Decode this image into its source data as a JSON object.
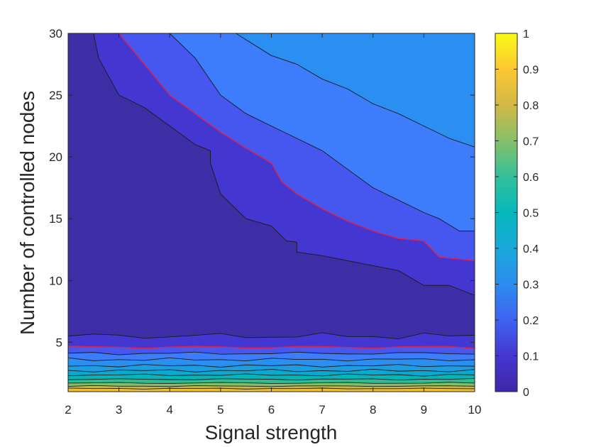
{
  "chart_data": {
    "type": "heatmap",
    "subtype": "filled-contour",
    "title": "",
    "xlabel": "Signal strength",
    "ylabel": "Number of controlled nodes",
    "xlim": [
      2,
      10
    ],
    "ylim": [
      1,
      30
    ],
    "xticks": [
      2,
      3,
      4,
      5,
      6,
      7,
      8,
      9,
      10
    ],
    "yticks": [
      5,
      10,
      15,
      20,
      25,
      30
    ],
    "colorbar": {
      "colormap": "parula",
      "range": [
        0,
        1
      ],
      "ticks": [
        "0",
        "0.1",
        "0.2",
        "0.3",
        "0.4",
        "0.5",
        "0.6",
        "0.7",
        "0.8",
        "0.9",
        "1"
      ]
    },
    "highlight_contour": {
      "color": "#e0204a"
    },
    "bands": [
      {
        "level": 0.05,
        "color": "#3d2ea9"
      },
      {
        "level": 0.1,
        "color": "#4436d1"
      },
      {
        "level": 0.15,
        "color": "#4657ef"
      },
      {
        "level": 0.2,
        "color": "#3d7cfb"
      },
      {
        "level": 0.3,
        "color": "#2a8ff0"
      },
      {
        "level": 0.35,
        "color": "#1d9de0"
      },
      {
        "level": 0.4,
        "color": "#0aa9d0"
      },
      {
        "level": 0.5,
        "color": "#06b5ba"
      },
      {
        "level": 0.6,
        "color": "#2dbd95"
      },
      {
        "level": 0.7,
        "color": "#82bf68"
      },
      {
        "level": 0.8,
        "color": "#c4b945"
      },
      {
        "level": 0.9,
        "color": "#f0be36"
      }
    ],
    "contours": [
      {
        "level": 0.05,
        "points": [
          [
            2.0,
            30
          ],
          [
            2.5,
            30
          ],
          [
            2.6,
            28
          ],
          [
            2.8,
            26.5
          ],
          [
            3.0,
            25
          ],
          [
            3.5,
            24
          ],
          [
            4.0,
            22.5
          ],
          [
            4.5,
            21
          ],
          [
            4.8,
            20.5
          ],
          [
            4.8,
            19.5
          ],
          [
            5.0,
            17
          ],
          [
            5.5,
            15
          ],
          [
            6.0,
            14.4
          ],
          [
            6.3,
            13.2
          ],
          [
            6.5,
            13.1
          ],
          [
            6.5,
            12.3
          ],
          [
            7.0,
            12
          ],
          [
            8.0,
            11.2
          ],
          [
            8.5,
            10.8
          ],
          [
            9.0,
            9.6
          ],
          [
            9.5,
            9.6
          ],
          [
            10,
            8.8
          ]
        ]
      },
      {
        "level": 0.1,
        "points": [
          [
            3.0,
            30
          ],
          [
            3.2,
            29
          ],
          [
            3.5,
            27.5
          ],
          [
            4.0,
            25
          ],
          [
            4.5,
            23.5
          ],
          [
            5.0,
            22
          ],
          [
            5.5,
            20.7
          ],
          [
            6.0,
            19.5
          ],
          [
            6.2,
            18
          ],
          [
            6.5,
            17
          ],
          [
            7.0,
            15.8
          ],
          [
            7.5,
            14.8
          ],
          [
            8.0,
            14
          ],
          [
            8.5,
            13.4
          ],
          [
            9.0,
            13.2
          ],
          [
            9.3,
            11.9
          ],
          [
            10,
            11.6
          ]
        ],
        "highlight": true
      },
      {
        "level": 0.15,
        "points": [
          [
            4.0,
            30
          ],
          [
            4.5,
            28
          ],
          [
            5.0,
            25
          ],
          [
            5.5,
            23.5
          ],
          [
            6.0,
            22.5
          ],
          [
            6.5,
            21.5
          ],
          [
            7.0,
            20.5
          ],
          [
            7.5,
            19
          ],
          [
            8.0,
            17.5
          ],
          [
            8.5,
            16.5
          ],
          [
            9.0,
            15.5
          ],
          [
            9.3,
            15
          ],
          [
            9.7,
            14
          ],
          [
            10,
            14
          ]
        ]
      },
      {
        "level": 0.2,
        "points": [
          [
            5.3,
            30
          ],
          [
            6.0,
            28.2
          ],
          [
            6.5,
            27.5
          ],
          [
            7.0,
            26.3
          ],
          [
            7.5,
            25.5
          ],
          [
            8.0,
            24.3
          ],
          [
            8.5,
            23.5
          ],
          [
            9.0,
            22.5
          ],
          [
            9.5,
            21.5
          ],
          [
            10,
            20.8
          ]
        ]
      }
    ],
    "low_band_boundaries": [
      {
        "y": 5.5,
        "jitter": 0.35,
        "highlight": false
      },
      {
        "y": 4.6,
        "jitter": 0.15,
        "highlight": true
      },
      {
        "y": 4.1,
        "jitter": 0.15,
        "highlight": false
      },
      {
        "y": 3.6,
        "jitter": 0.15,
        "highlight": false
      },
      {
        "y": 3.1,
        "jitter": 0.12,
        "highlight": false
      },
      {
        "y": 2.7,
        "jitter": 0.12,
        "highlight": false
      },
      {
        "y": 2.35,
        "jitter": 0.1,
        "highlight": false
      },
      {
        "y": 2.0,
        "jitter": 0.08,
        "highlight": false
      },
      {
        "y": 1.7,
        "jitter": 0.08,
        "highlight": false
      },
      {
        "y": 1.45,
        "jitter": 0.06,
        "highlight": false
      },
      {
        "y": 1.25,
        "jitter": 0.05,
        "highlight": false
      }
    ]
  }
}
